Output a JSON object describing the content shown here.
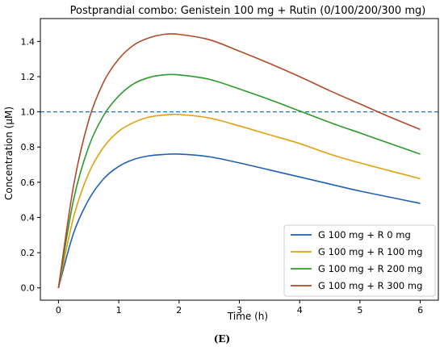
{
  "chart_data": {
    "type": "line",
    "title": "Postprandial combo: Genistein 100 mg + Rutin (0/100/200/300 mg)",
    "xlabel": "Time (h)",
    "ylabel": "Concentration (µM)",
    "xlim": [
      -0.3,
      6.3
    ],
    "ylim": [
      -0.07,
      1.53
    ],
    "xticks": [
      0,
      1,
      2,
      3,
      4,
      5,
      6
    ],
    "xtick_labels": [
      "0",
      "1",
      "2",
      "3",
      "4",
      "5",
      "6"
    ],
    "yticks": [
      0.0,
      0.2,
      0.4,
      0.6,
      0.8,
      1.0,
      1.2,
      1.4
    ],
    "ytick_labels": [
      "0.0",
      "0.2",
      "0.4",
      "0.6",
      "0.8",
      "1.0",
      "1.2",
      "1.4"
    ],
    "grid": false,
    "legend_position": "bottom-right",
    "reference_line": {
      "y": 1.0,
      "style": "dashed",
      "color": "#1f77b4"
    },
    "x": [
      0,
      0.25,
      0.5,
      0.75,
      1.0,
      1.25,
      1.5,
      1.75,
      2.0,
      2.5,
      3.0,
      3.5,
      4.0,
      4.5,
      5.0,
      5.5,
      6.0
    ],
    "series": [
      {
        "name": "G 100 mg + R 0 mg",
        "color": "#1f5fb4",
        "values": [
          0,
          0.31,
          0.5,
          0.62,
          0.69,
          0.73,
          0.75,
          0.758,
          0.76,
          0.745,
          0.71,
          0.67,
          0.63,
          0.59,
          0.55,
          0.515,
          0.48
        ]
      },
      {
        "name": "G 100 mg + R 100 mg",
        "color": "#e0a010",
        "values": [
          0,
          0.4,
          0.65,
          0.8,
          0.89,
          0.94,
          0.97,
          0.982,
          0.985,
          0.965,
          0.92,
          0.87,
          0.82,
          0.76,
          0.71,
          0.665,
          0.62
        ]
      },
      {
        "name": "G 100 mg + R 200 mg",
        "color": "#2a9a2a",
        "values": [
          0,
          0.5,
          0.8,
          0.98,
          1.09,
          1.16,
          1.195,
          1.21,
          1.21,
          1.185,
          1.13,
          1.07,
          1.005,
          0.94,
          0.88,
          0.82,
          0.76
        ]
      },
      {
        "name": "G 100 mg + R 300 mg",
        "color": "#b04a2a",
        "values": [
          0,
          0.58,
          0.95,
          1.17,
          1.3,
          1.38,
          1.42,
          1.44,
          1.44,
          1.41,
          1.345,
          1.275,
          1.2,
          1.12,
          1.045,
          0.97,
          0.9
        ]
      }
    ]
  },
  "caption": "(E)"
}
